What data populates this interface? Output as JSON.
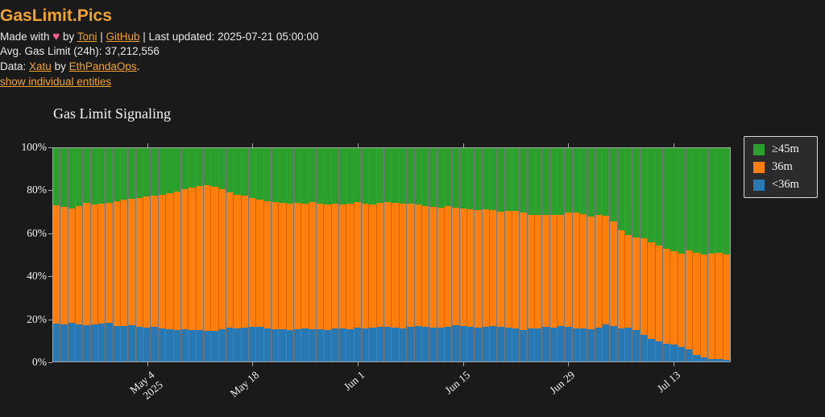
{
  "page": {
    "title": "GasLimit.Pics",
    "byline": {
      "made_with": "Made with ",
      "heart": "♥",
      "by": " by ",
      "author": "Toni",
      "sep": " | ",
      "github": "GitHub",
      "updated": " | Last updated: 2025-07-21 05:00:00"
    },
    "avg_line": "Avg. Gas Limit (24h): 37,212,556",
    "data_line": {
      "prefix": "Data: ",
      "xatu": "Xatu",
      "by": " by ",
      "ethpandaops": "EthPandaOps",
      "period": "."
    },
    "entities_link": "show individual entities"
  },
  "colors": {
    "background": "#1a1a1a",
    "accent_orange": "#f0a332",
    "heart_pink": "#ff5e99",
    "axis": "#a8a8a8",
    "green_gte45m": "#2ca02c",
    "orange_36m": "#ff7f0e",
    "blue_lt36m": "#2878b4",
    "legend_bg": "#2b2b2b"
  },
  "chart_data": {
    "type": "bar",
    "stacked": true,
    "normalized_percent": true,
    "title": "Gas Limit Signaling",
    "xlabel": "",
    "ylabel": "",
    "ylim": [
      0,
      100
    ],
    "grid": false,
    "legend_position": "outside-top-right",
    "ytick_labels": [
      "0%",
      "20%",
      "40%",
      "60%",
      "80%",
      "100%"
    ],
    "xtick_labels": [
      [
        "May 4",
        "2025"
      ],
      [
        "May 18"
      ],
      [
        "Jun 1"
      ],
      [
        "Jun 15"
      ],
      [
        "Jun 29"
      ],
      [
        "Jul 13"
      ]
    ],
    "xtick_bar_indices": [
      12,
      26,
      40,
      54,
      68,
      82
    ],
    "legend": [
      {
        "key": "gte45m",
        "label": "≥45m",
        "color": "#2ca02c"
      },
      {
        "key": "36m",
        "label": "36m",
        "color": "#ff7f0e"
      },
      {
        "key": "lt36m",
        "label": "<36m",
        "color": "#2878b4"
      }
    ],
    "dates": [
      "2025-04-22",
      "2025-04-23",
      "2025-04-24",
      "2025-04-25",
      "2025-04-26",
      "2025-04-27",
      "2025-04-28",
      "2025-04-29",
      "2025-04-30",
      "2025-05-01",
      "2025-05-02",
      "2025-05-03",
      "2025-05-04",
      "2025-05-05",
      "2025-05-06",
      "2025-05-07",
      "2025-05-08",
      "2025-05-09",
      "2025-05-10",
      "2025-05-11",
      "2025-05-12",
      "2025-05-13",
      "2025-05-14",
      "2025-05-15",
      "2025-05-16",
      "2025-05-17",
      "2025-05-18",
      "2025-05-19",
      "2025-05-20",
      "2025-05-21",
      "2025-05-22",
      "2025-05-23",
      "2025-05-24",
      "2025-05-25",
      "2025-05-26",
      "2025-05-27",
      "2025-05-28",
      "2025-05-29",
      "2025-05-30",
      "2025-05-31",
      "2025-06-01",
      "2025-06-02",
      "2025-06-03",
      "2025-06-04",
      "2025-06-05",
      "2025-06-06",
      "2025-06-07",
      "2025-06-08",
      "2025-06-09",
      "2025-06-10",
      "2025-06-11",
      "2025-06-12",
      "2025-06-13",
      "2025-06-14",
      "2025-06-15",
      "2025-06-16",
      "2025-06-17",
      "2025-06-18",
      "2025-06-19",
      "2025-06-20",
      "2025-06-21",
      "2025-06-22",
      "2025-06-23",
      "2025-06-24",
      "2025-06-25",
      "2025-06-26",
      "2025-06-27",
      "2025-06-28",
      "2025-06-29",
      "2025-06-30",
      "2025-07-01",
      "2025-07-02",
      "2025-07-03",
      "2025-07-04",
      "2025-07-05",
      "2025-07-06",
      "2025-07-07",
      "2025-07-08",
      "2025-07-09",
      "2025-07-10",
      "2025-07-11",
      "2025-07-12",
      "2025-07-13",
      "2025-07-14",
      "2025-07-15",
      "2025-07-16",
      "2025-07-17",
      "2025-07-18",
      "2025-07-19",
      "2025-07-20"
    ],
    "series": [
      {
        "name": "≥45m",
        "key": "gte45m",
        "color": "#2ca02c",
        "values": [
          26.8,
          27.7,
          28.2,
          27.0,
          25.7,
          26.5,
          26.2,
          25.7,
          25.0,
          24.3,
          23.9,
          23.5,
          22.8,
          22.1,
          21.7,
          21.3,
          20.5,
          19.4,
          18.5,
          17.7,
          17.4,
          18.0,
          19.4,
          20.7,
          21.8,
          22.4,
          23.5,
          24.2,
          24.8,
          25.2,
          25.7,
          26.1,
          25.6,
          26.1,
          25.4,
          25.9,
          26.3,
          26.0,
          26.5,
          26.2,
          25.4,
          25.9,
          26.3,
          25.7,
          25.2,
          25.8,
          26.2,
          26.0,
          26.5,
          27.0,
          27.4,
          27.8,
          27.2,
          27.8,
          28.4,
          28.8,
          29.1,
          28.6,
          29.2,
          29.7,
          29.4,
          29.3,
          30.2,
          31.2,
          31.4,
          31.2,
          31.4,
          31.2,
          30.2,
          30.2,
          31.0,
          32.0,
          31.4,
          31.8,
          34.5,
          38.4,
          40.8,
          42.0,
          42.4,
          44.0,
          45.7,
          47.3,
          48.2,
          49.4,
          47.9,
          49.1,
          49.7,
          49.5,
          49.2,
          49.8
        ]
      },
      {
        "name": "36m",
        "key": "36m",
        "color": "#ff7f0e",
        "values": [
          55.4,
          55.1,
          53.6,
          55.6,
          57.3,
          56.1,
          56.0,
          56.1,
          58.5,
          59.0,
          59.2,
          60.3,
          61.2,
          61.6,
          62.8,
          63.6,
          64.9,
          65.4,
          66.6,
          67.6,
          68.3,
          67.5,
          65.4,
          63.4,
          62.7,
          61.9,
          60.1,
          59.7,
          59.8,
          59.8,
          59.1,
          59.0,
          59.3,
          58.6,
          59.6,
          58.9,
          58.9,
          58.6,
          57.9,
          58.6,
          58.6,
          58.5,
          57.9,
          58.2,
          58.4,
          58.3,
          58.2,
          57.8,
          56.9,
          56.7,
          56.6,
          56.5,
          56.4,
          55.4,
          55.1,
          55.1,
          55.1,
          55.1,
          54.1,
          53.9,
          54.6,
          55.3,
          55.0,
          53.2,
          53.0,
          52.4,
          52.6,
          52.2,
          53.4,
          54.2,
          53.4,
          52.8,
          52.6,
          51.0,
          48.9,
          46.2,
          43.2,
          43.2,
          45.3,
          45.5,
          45.0,
          44.4,
          44.0,
          43.8,
          46.5,
          47.7,
          48.3,
          49.2,
          49.8,
          49.4
        ]
      },
      {
        "name": "<36m",
        "key": "lt36m",
        "color": "#2878b4",
        "values": [
          17.8,
          17.2,
          18.2,
          17.4,
          17.0,
          17.4,
          17.8,
          18.2,
          16.5,
          16.7,
          16.9,
          16.2,
          16.0,
          16.3,
          15.5,
          15.1,
          14.6,
          15.2,
          14.9,
          14.7,
          14.3,
          14.5,
          15.2,
          15.9,
          15.5,
          15.7,
          16.4,
          16.1,
          15.4,
          15.0,
          15.2,
          14.9,
          15.1,
          15.3,
          15.0,
          15.2,
          14.8,
          15.4,
          15.6,
          15.2,
          16.0,
          15.6,
          15.8,
          16.1,
          16.4,
          15.9,
          15.6,
          16.2,
          16.6,
          16.3,
          16.0,
          15.7,
          16.4,
          16.8,
          16.5,
          16.1,
          15.8,
          16.3,
          16.7,
          16.4,
          16.0,
          15.4,
          14.8,
          15.6,
          15.6,
          16.4,
          16.0,
          16.6,
          16.4,
          15.6,
          15.6,
          15.2,
          16.0,
          17.2,
          16.6,
          15.4,
          16.0,
          14.8,
          12.3,
          10.5,
          9.3,
          8.3,
          7.8,
          6.8,
          5.6,
          3.2,
          2.0,
          1.3,
          1.0,
          0.8
        ]
      }
    ]
  }
}
